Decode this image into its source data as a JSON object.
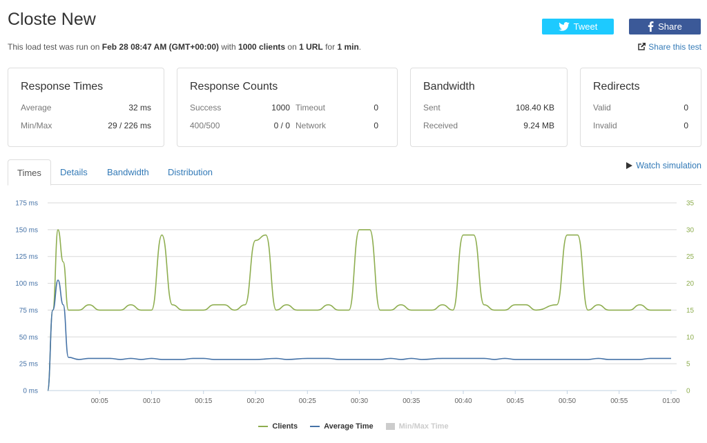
{
  "header": {
    "title": "Closte New",
    "subtitle_prefix": "This load test was run on ",
    "date": "Feb 28 08:47 AM (GMT+00:00)",
    "mid1": " with ",
    "clients": "1000 clients",
    "mid2": " on ",
    "urls": "1 URL",
    "mid3": " for ",
    "duration": "1 min",
    "suffix": ".",
    "tweet_label": "Tweet",
    "share_label": "Share",
    "share_test_label": "Share this test"
  },
  "cards": {
    "response_times": {
      "title": "Response Times",
      "average_label": "Average",
      "average_value": "32 ms",
      "minmax_label": "Min/Max",
      "minmax_value": "29 / 226 ms"
    },
    "response_counts": {
      "title": "Response Counts",
      "success_label": "Success",
      "success_value": "1000",
      "timeout_label": "Timeout",
      "timeout_value": "0",
      "err_label": "400/500",
      "err_value": "0 / 0",
      "network_label": "Network",
      "network_value": "0"
    },
    "bandwidth": {
      "title": "Bandwidth",
      "sent_label": "Sent",
      "sent_value": "108.40 KB",
      "received_label": "Received",
      "received_value": "9.24 MB"
    },
    "redirects": {
      "title": "Redirects",
      "valid_label": "Valid",
      "valid_value": "0",
      "invalid_label": "Invalid",
      "invalid_value": "0"
    }
  },
  "tabs": [
    {
      "label": "Times",
      "active": true
    },
    {
      "label": "Details",
      "active": false
    },
    {
      "label": "Bandwidth",
      "active": false
    },
    {
      "label": "Distribution",
      "active": false
    }
  ],
  "watch_label": "Watch simulation",
  "colors": {
    "clients": "#8dad4e",
    "average": "#4572a7",
    "minmax": "#cccccc",
    "link": "#337ab7"
  },
  "chart_data": {
    "type": "line",
    "x_ticks": [
      "00:05",
      "00:10",
      "00:15",
      "00:20",
      "00:25",
      "00:30",
      "00:35",
      "00:40",
      "00:45",
      "00:50",
      "00:55",
      "01:00"
    ],
    "y_left_ticks": [
      "0 ms",
      "25 ms",
      "50 ms",
      "75 ms",
      "100 ms",
      "125 ms",
      "150 ms",
      "175 ms"
    ],
    "y_right_ticks": [
      "0",
      "5",
      "10",
      "15",
      "20",
      "25",
      "30",
      "35"
    ],
    "y_left_range": [
      0,
      175
    ],
    "y_right_range": [
      0,
      35
    ],
    "x_range_seconds": [
      0,
      60
    ],
    "series": [
      {
        "name": "Clients",
        "axis": "right",
        "points": [
          [
            0,
            0
          ],
          [
            0.5,
            15
          ],
          [
            1,
            30
          ],
          [
            1.5,
            24
          ],
          [
            2,
            15
          ],
          [
            3,
            15
          ],
          [
            4,
            16
          ],
          [
            5,
            15
          ],
          [
            7,
            15
          ],
          [
            8,
            16
          ],
          [
            9,
            15
          ],
          [
            10,
            15
          ],
          [
            11,
            29
          ],
          [
            12,
            16
          ],
          [
            13,
            15
          ],
          [
            15,
            15
          ],
          [
            16,
            16
          ],
          [
            17,
            16
          ],
          [
            18,
            15
          ],
          [
            19,
            16
          ],
          [
            20,
            28
          ],
          [
            21,
            29
          ],
          [
            22,
            15
          ],
          [
            23,
            16
          ],
          [
            24,
            15
          ],
          [
            26,
            15
          ],
          [
            27,
            16
          ],
          [
            28,
            15
          ],
          [
            29,
            15
          ],
          [
            30,
            30
          ],
          [
            31,
            30
          ],
          [
            32,
            15
          ],
          [
            33,
            15
          ],
          [
            34,
            16
          ],
          [
            35,
            15
          ],
          [
            37,
            15
          ],
          [
            38,
            16
          ],
          [
            39,
            15
          ],
          [
            40,
            29
          ],
          [
            41,
            29
          ],
          [
            42,
            16
          ],
          [
            43,
            15
          ],
          [
            44,
            15
          ],
          [
            45,
            16
          ],
          [
            46,
            16
          ],
          [
            47,
            15
          ],
          [
            49,
            16
          ],
          [
            50,
            29
          ],
          [
            51,
            29
          ],
          [
            52,
            15
          ],
          [
            53,
            16
          ],
          [
            54,
            15
          ],
          [
            56,
            15
          ],
          [
            57,
            16
          ],
          [
            58,
            15
          ],
          [
            60,
            15
          ]
        ]
      },
      {
        "name": "Average Time",
        "axis": "left",
        "points": [
          [
            0,
            0
          ],
          [
            0.5,
            75
          ],
          [
            1,
            103
          ],
          [
            1.5,
            80
          ],
          [
            2,
            31
          ],
          [
            3,
            29
          ],
          [
            4,
            30
          ],
          [
            6,
            30
          ],
          [
            7,
            29
          ],
          [
            8,
            30
          ],
          [
            9,
            29
          ],
          [
            10,
            30
          ],
          [
            11,
            29
          ],
          [
            13,
            29
          ],
          [
            14,
            30
          ],
          [
            15,
            30
          ],
          [
            16,
            29
          ],
          [
            20,
            29
          ],
          [
            22,
            30
          ],
          [
            23,
            29
          ],
          [
            25,
            30
          ],
          [
            27,
            30
          ],
          [
            28,
            29
          ],
          [
            32,
            29
          ],
          [
            33,
            30
          ],
          [
            34,
            29
          ],
          [
            35,
            30
          ],
          [
            36,
            29
          ],
          [
            38,
            30
          ],
          [
            42,
            30
          ],
          [
            43,
            29
          ],
          [
            44,
            30
          ],
          [
            45,
            29
          ],
          [
            52,
            29
          ],
          [
            53,
            30
          ],
          [
            54,
            29
          ],
          [
            57,
            29
          ],
          [
            58,
            30
          ],
          [
            60,
            30
          ]
        ]
      },
      {
        "name": "Min/Max Time",
        "axis": "left",
        "hidden": true,
        "points": []
      }
    ]
  }
}
